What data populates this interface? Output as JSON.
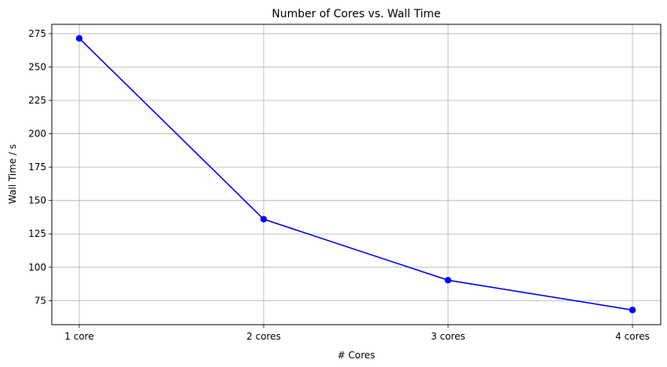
{
  "chart_data": {
    "type": "line",
    "title": "Number of Cores vs. Wall Time",
    "xlabel": "# Cores",
    "ylabel": "Wall Time / s",
    "categories": [
      "1 core",
      "2 cores",
      "3 cores",
      "4 cores"
    ],
    "series": [
      {
        "values": [
          271.5,
          136,
          90.3,
          68
        ],
        "color": "#0000ff",
        "marker": "circle"
      }
    ],
    "yticks": [
      75,
      100,
      125,
      150,
      175,
      200,
      225,
      250,
      275
    ],
    "ylim": [
      57,
      282
    ],
    "grid": true,
    "legend": "none"
  }
}
